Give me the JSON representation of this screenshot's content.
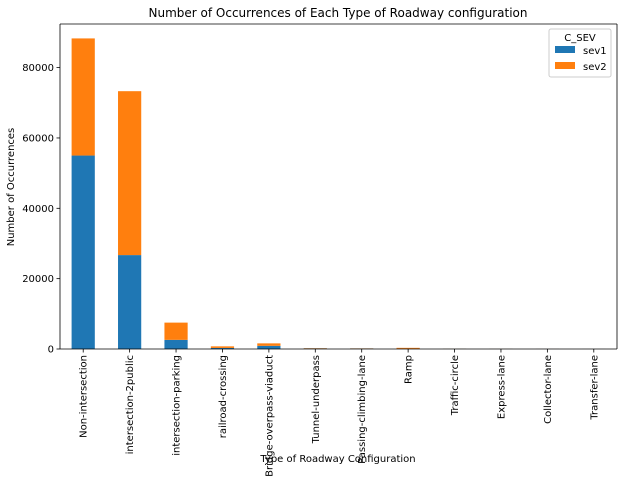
{
  "chart_data": {
    "type": "bar",
    "stacked": true,
    "title": "Number of Occurrences of Each Type of Roadway configuration",
    "xlabel": "Type of Roadway Configuration",
    "ylabel": "Number of Occurrences",
    "ylim": [
      0,
      92400
    ],
    "yticks": [
      0,
      20000,
      40000,
      60000,
      80000
    ],
    "grid": false,
    "legend": {
      "title": "C_SEV",
      "placement": "top-right"
    },
    "categories": [
      "Non-intersection",
      "intersection-2public",
      "intersection-parking",
      "railroad-crossing",
      "Bridge-overpass-viaduct",
      "Tunnel-underpass",
      "Passing-climbing-lane",
      "Ramp",
      "Traffic-circle",
      "Express-lane",
      "Collector-lane",
      "Transfer-lane"
    ],
    "series": [
      {
        "name": "sev1",
        "color": "#1f77b4",
        "values": [
          55000,
          26700,
          2600,
          300,
          900,
          150,
          120,
          80,
          30,
          20,
          15,
          5
        ]
      },
      {
        "name": "sev2",
        "color": "#ff7f0e",
        "values": [
          33300,
          46600,
          4900,
          450,
          700,
          80,
          60,
          250,
          30,
          20,
          15,
          5
        ]
      }
    ]
  }
}
